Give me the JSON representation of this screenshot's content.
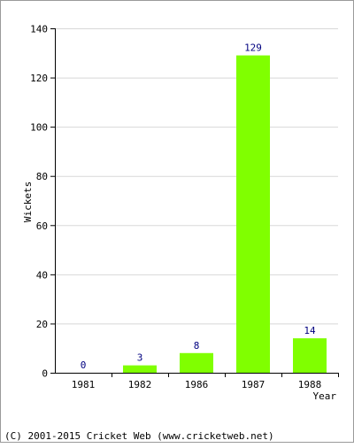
{
  "chart_data": {
    "type": "bar",
    "categories": [
      "1981",
      "1982",
      "1986",
      "1987",
      "1988"
    ],
    "values": [
      0,
      3,
      8,
      129,
      14
    ],
    "data_labels": [
      "0",
      "3",
      "8",
      "129",
      "14"
    ],
    "title": "",
    "xlabel": "Year",
    "ylabel": "Wickets",
    "ylim": [
      0,
      140
    ],
    "yticks": [
      0,
      20,
      40,
      60,
      80,
      100,
      120,
      140
    ],
    "grid": true,
    "legend": "none",
    "colors": {
      "bar": "#80ff00",
      "data_label": "#000080",
      "grid": "#d8d8d8",
      "axis": "#000000",
      "frame": "#9a9a9a"
    }
  },
  "footer": {
    "copyright": "(C) 2001-2015 Cricket Web (www.cricketweb.net)"
  }
}
